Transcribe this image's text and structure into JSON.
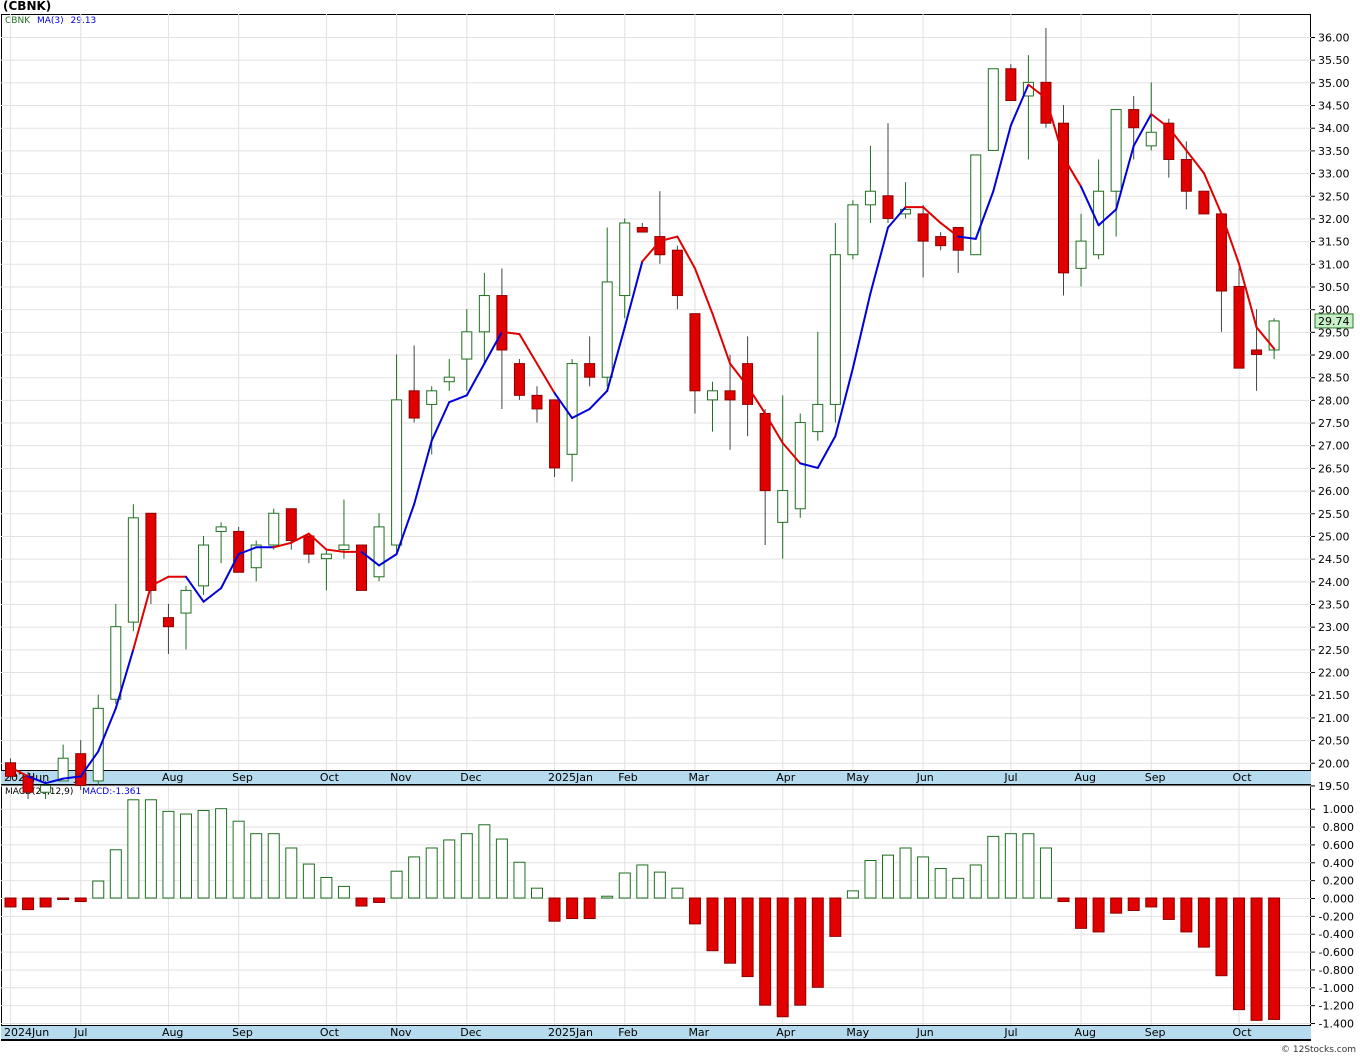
{
  "title": "(CBNK)",
  "price_legend": {
    "symbol": "CBNK",
    "ma_label": "MA(3)",
    "ma_value": "29.13"
  },
  "macd_legend": {
    "label": "MACD(26,12,9)",
    "value_label": "MACD:-1.361"
  },
  "credit": "© 12Stocks.com",
  "colors": {
    "up": "#1f6f1f",
    "down": "#e00000",
    "ma_up": "#0000dd",
    "ma_down": "#e00000",
    "axis_band": "#b7dbee",
    "last_price_box": "#c8f0c8"
  },
  "chart_data": [
    {
      "type": "candlestick",
      "symbol": "CBNK",
      "interval": "weekly",
      "last_price": "29.74",
      "ylim": [
        19,
        36.4
      ],
      "y_ticks": [
        "36.00",
        "35.50",
        "35.00",
        "34.50",
        "34.00",
        "33.50",
        "33.00",
        "32.50",
        "32.00",
        "31.50",
        "31.00",
        "30.50",
        "30.00",
        "29.50",
        "29.00",
        "28.50",
        "28.00",
        "27.50",
        "27.00",
        "26.50",
        "26.00",
        "25.50",
        "25.00",
        "24.50",
        "24.00",
        "23.50",
        "23.00",
        "22.50",
        "22.00",
        "21.50",
        "21.00",
        "20.50",
        "20.00",
        "19.50"
      ],
      "x_labels": [
        {
          "i": 0,
          "text": "2024Jun"
        },
        {
          "i": 4,
          "text": "Jul"
        },
        {
          "i": 9,
          "text": "Aug"
        },
        {
          "i": 13,
          "text": "Sep"
        },
        {
          "i": 18,
          "text": "Oct"
        },
        {
          "i": 22,
          "text": "Nov"
        },
        {
          "i": 26,
          "text": "Dec"
        },
        {
          "i": 31,
          "text": "2025Jan"
        },
        {
          "i": 35,
          "text": "Feb"
        },
        {
          "i": 39,
          "text": "Mar"
        },
        {
          "i": 44,
          "text": "Apr"
        },
        {
          "i": 48,
          "text": "May"
        },
        {
          "i": 52,
          "text": "Jun"
        },
        {
          "i": 57,
          "text": "Jul"
        },
        {
          "i": 61,
          "text": "Aug"
        },
        {
          "i": 65,
          "text": "Sep"
        },
        {
          "i": 70,
          "text": "Oct"
        }
      ],
      "candles": [
        {
          "o": 20.0,
          "h": 20.1,
          "l": 19.6,
          "c": 19.7
        },
        {
          "o": 19.7,
          "h": 19.8,
          "l": 19.2,
          "c": 19.35
        },
        {
          "o": 19.35,
          "h": 19.6,
          "l": 19.2,
          "c": 19.5
        },
        {
          "o": 19.6,
          "h": 20.4,
          "l": 19.6,
          "c": 20.1
        },
        {
          "o": 20.2,
          "h": 20.5,
          "l": 19.4,
          "c": 19.5
        },
        {
          "o": 19.6,
          "h": 21.5,
          "l": 19.5,
          "c": 21.2
        },
        {
          "o": 21.4,
          "h": 23.5,
          "l": 21.3,
          "c": 23.0
        },
        {
          "o": 23.1,
          "h": 25.7,
          "l": 22.9,
          "c": 25.4
        },
        {
          "o": 25.5,
          "h": 25.5,
          "l": 23.5,
          "c": 23.8
        },
        {
          "o": 23.2,
          "h": 23.5,
          "l": 22.4,
          "c": 23.0
        },
        {
          "o": 23.3,
          "h": 23.9,
          "l": 22.5,
          "c": 23.8
        },
        {
          "o": 23.9,
          "h": 25.0,
          "l": 23.7,
          "c": 24.8
        },
        {
          "o": 25.1,
          "h": 25.3,
          "l": 24.4,
          "c": 25.2
        },
        {
          "o": 25.1,
          "h": 25.2,
          "l": 24.2,
          "c": 24.2
        },
        {
          "o": 24.3,
          "h": 24.9,
          "l": 24.0,
          "c": 24.8
        },
        {
          "o": 24.8,
          "h": 25.6,
          "l": 24.7,
          "c": 25.5
        },
        {
          "o": 25.6,
          "h": 25.6,
          "l": 24.7,
          "c": 24.9
        },
        {
          "o": 25.0,
          "h": 25.0,
          "l": 24.4,
          "c": 24.6
        },
        {
          "o": 24.5,
          "h": 24.7,
          "l": 23.8,
          "c": 24.6
        },
        {
          "o": 24.7,
          "h": 25.8,
          "l": 24.5,
          "c": 24.8
        },
        {
          "o": 24.8,
          "h": 24.8,
          "l": 23.8,
          "c": 23.8
        },
        {
          "o": 24.1,
          "h": 25.5,
          "l": 24.0,
          "c": 25.2
        },
        {
          "o": 24.8,
          "h": 29.0,
          "l": 24.6,
          "c": 28.0
        },
        {
          "o": 28.2,
          "h": 29.2,
          "l": 27.5,
          "c": 27.6
        },
        {
          "o": 27.9,
          "h": 28.3,
          "l": 26.8,
          "c": 28.2
        },
        {
          "o": 28.4,
          "h": 28.9,
          "l": 28.2,
          "c": 28.5
        },
        {
          "o": 28.9,
          "h": 30.0,
          "l": 28.2,
          "c": 29.5
        },
        {
          "o": 29.5,
          "h": 30.8,
          "l": 28.8,
          "c": 30.3
        },
        {
          "o": 30.3,
          "h": 30.9,
          "l": 27.8,
          "c": 29.1
        },
        {
          "o": 28.8,
          "h": 28.9,
          "l": 28.0,
          "c": 28.1
        },
        {
          "o": 28.1,
          "h": 28.3,
          "l": 27.5,
          "c": 27.8
        },
        {
          "o": 28.0,
          "h": 28.0,
          "l": 26.3,
          "c": 26.5
        },
        {
          "o": 26.8,
          "h": 28.9,
          "l": 26.2,
          "c": 28.8
        },
        {
          "o": 28.8,
          "h": 29.4,
          "l": 28.3,
          "c": 28.5
        },
        {
          "o": 28.5,
          "h": 31.8,
          "l": 28.3,
          "c": 30.6
        },
        {
          "o": 30.3,
          "h": 32.0,
          "l": 29.8,
          "c": 31.9
        },
        {
          "o": 31.8,
          "h": 31.9,
          "l": 31.7,
          "c": 31.7
        },
        {
          "o": 31.6,
          "h": 32.6,
          "l": 31.0,
          "c": 31.2
        },
        {
          "o": 31.3,
          "h": 31.4,
          "l": 30.0,
          "c": 30.3
        },
        {
          "o": 29.9,
          "h": 29.9,
          "l": 27.7,
          "c": 28.2
        },
        {
          "o": 28.0,
          "h": 28.4,
          "l": 27.3,
          "c": 28.2
        },
        {
          "o": 28.2,
          "h": 29.0,
          "l": 26.9,
          "c": 28.0
        },
        {
          "o": 28.8,
          "h": 29.4,
          "l": 27.2,
          "c": 27.9
        },
        {
          "o": 27.7,
          "h": 27.8,
          "l": 24.8,
          "c": 26.0
        },
        {
          "o": 25.3,
          "h": 28.1,
          "l": 24.5,
          "c": 26.0
        },
        {
          "o": 25.6,
          "h": 27.7,
          "l": 25.4,
          "c": 27.5
        },
        {
          "o": 27.3,
          "h": 29.5,
          "l": 27.1,
          "c": 27.9
        },
        {
          "o": 27.9,
          "h": 31.9,
          "l": 27.5,
          "c": 31.2
        },
        {
          "o": 31.2,
          "h": 32.4,
          "l": 31.1,
          "c": 32.3
        },
        {
          "o": 32.3,
          "h": 33.6,
          "l": 31.9,
          "c": 32.6
        },
        {
          "o": 32.5,
          "h": 34.1,
          "l": 31.9,
          "c": 32.0
        },
        {
          "o": 32.1,
          "h": 32.8,
          "l": 32.0,
          "c": 32.2
        },
        {
          "o": 32.1,
          "h": 32.3,
          "l": 30.7,
          "c": 31.5
        },
        {
          "o": 31.6,
          "h": 31.7,
          "l": 31.3,
          "c": 31.4
        },
        {
          "o": 31.8,
          "h": 31.8,
          "l": 30.8,
          "c": 31.3
        },
        {
          "o": 31.2,
          "h": 33.4,
          "l": 31.2,
          "c": 33.4
        },
        {
          "o": 33.5,
          "h": 35.3,
          "l": 33.5,
          "c": 35.3
        },
        {
          "o": 35.3,
          "h": 35.4,
          "l": 34.6,
          "c": 34.6
        },
        {
          "o": 34.7,
          "h": 35.6,
          "l": 33.3,
          "c": 35.0
        },
        {
          "o": 35.0,
          "h": 36.2,
          "l": 34.0,
          "c": 34.1
        },
        {
          "o": 34.1,
          "h": 34.5,
          "l": 30.3,
          "c": 30.8
        },
        {
          "o": 30.9,
          "h": 32.1,
          "l": 30.5,
          "c": 31.5
        },
        {
          "o": 31.2,
          "h": 33.3,
          "l": 31.1,
          "c": 32.6
        },
        {
          "o": 32.6,
          "h": 34.4,
          "l": 31.6,
          "c": 34.4
        },
        {
          "o": 34.4,
          "h": 34.7,
          "l": 33.3,
          "c": 34.0
        },
        {
          "o": 33.6,
          "h": 35.0,
          "l": 33.5,
          "c": 33.9
        },
        {
          "o": 34.1,
          "h": 34.2,
          "l": 32.9,
          "c": 33.3
        },
        {
          "o": 33.3,
          "h": 33.7,
          "l": 32.2,
          "c": 32.6
        },
        {
          "o": 32.6,
          "h": 32.6,
          "l": 32.1,
          "c": 32.1
        },
        {
          "o": 32.1,
          "h": 32.1,
          "l": 29.5,
          "c": 30.4
        },
        {
          "o": 30.5,
          "h": 30.9,
          "l": 28.7,
          "c": 28.7
        },
        {
          "o": 29.1,
          "h": 30.0,
          "l": 28.2,
          "c": 29.0
        },
        {
          "o": 29.1,
          "h": 29.8,
          "l": 28.9,
          "c": 29.74
        }
      ],
      "ma3": [
        19.9,
        19.7,
        19.55,
        19.65,
        19.7,
        20.25,
        21.2,
        22.5,
        23.9,
        24.1,
        24.1,
        23.55,
        23.85,
        24.6,
        24.75,
        24.75,
        24.85,
        25.05,
        24.7,
        24.65,
        24.65,
        24.35,
        24.6,
        25.7,
        27.1,
        27.95,
        28.1,
        28.8,
        29.5,
        29.45,
        28.8,
        28.15,
        27.6,
        27.8,
        28.2,
        29.6,
        31.05,
        31.5,
        31.6,
        30.9,
        29.9,
        28.8,
        28.3,
        27.7,
        27.05,
        26.6,
        26.5,
        27.2,
        28.7,
        30.35,
        31.8,
        32.25,
        32.25,
        31.9,
        31.6,
        31.55,
        32.6,
        34.05,
        34.95,
        34.65,
        33.35,
        32.7,
        31.85,
        32.2,
        33.6,
        34.3,
        34.0,
        33.5,
        33.0,
        32.1,
        31.0,
        29.6,
        29.13
      ],
      "ma3_colors": [
        "down",
        "down",
        "up",
        "up",
        "up",
        "up",
        "up",
        "up",
        "down",
        "down",
        "down",
        "up",
        "up",
        "up",
        "up",
        "up",
        "down",
        "down",
        "down",
        "down",
        "down",
        "up",
        "up",
        "up",
        "up",
        "up",
        "up",
        "up",
        "up",
        "down",
        "down",
        "down",
        "up",
        "up",
        "up",
        "up",
        "up",
        "down",
        "down",
        "down",
        "down",
        "down",
        "down",
        "down",
        "down",
        "down",
        "up",
        "up",
        "up",
        "up",
        "up",
        "up",
        "down",
        "down",
        "down",
        "up",
        "up",
        "up",
        "up",
        "down",
        "down",
        "down",
        "up",
        "up",
        "up",
        "up",
        "down",
        "down",
        "down",
        "down",
        "down",
        "down",
        "down"
      ]
    },
    {
      "type": "bar",
      "name": "MACD(26,12,9)",
      "ylim": [
        -1.45,
        1.1
      ],
      "y_ticks": [
        "1.000",
        "0.800",
        "0.600",
        "0.400",
        "0.200",
        "0.000",
        "-0.200",
        "-0.400",
        "-0.600",
        "-0.800",
        "-1.000",
        "-1.200",
        "-1.400"
      ],
      "values": [
        -0.1,
        -0.13,
        -0.1,
        -0.01,
        -0.04,
        0.19,
        0.54,
        1.1,
        1.1,
        0.97,
        0.94,
        0.98,
        1.0,
        0.86,
        0.72,
        0.72,
        0.56,
        0.38,
        0.23,
        0.13,
        -0.09,
        -0.05,
        0.3,
        0.46,
        0.56,
        0.65,
        0.72,
        0.82,
        0.66,
        0.4,
        0.11,
        -0.26,
        -0.23,
        -0.23,
        0.02,
        0.28,
        0.37,
        0.29,
        0.11,
        -0.29,
        -0.59,
        -0.73,
        -0.88,
        -1.2,
        -1.33,
        -1.2,
        -1.0,
        -0.43,
        0.08,
        0.42,
        0.48,
        0.56,
        0.46,
        0.33,
        0.22,
        0.37,
        0.69,
        0.72,
        0.72,
        0.56,
        -0.04,
        -0.34,
        -0.38,
        -0.17,
        -0.14,
        -0.1,
        -0.24,
        -0.38,
        -0.55,
        -0.87,
        -1.25,
        -1.37,
        -1.36
      ]
    }
  ]
}
